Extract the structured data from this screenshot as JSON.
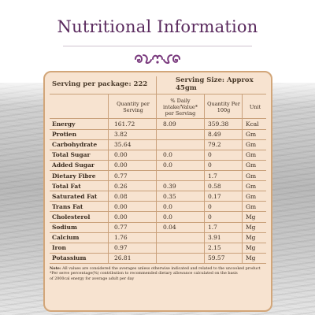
{
  "title": "Nutritional Information",
  "header": {
    "serving_per_package": "Serving per package: 222",
    "serving_size": "Serving Size: Approx 45gm"
  },
  "columns": {
    "qty_per_serving": "Quantity per Serving",
    "daily_intake": "% Daily intake/Value* per Serving",
    "qty_per_100g": "Quantity Per 100g",
    "unit": "Unit"
  },
  "rows": [
    {
      "name": "Energy",
      "qty": "161.72",
      "daily": "8.09",
      "per100": "359.38",
      "unit": "Kcal"
    },
    {
      "name": "Protien",
      "qty": "3.82",
      "daily": "",
      "per100": "8.49",
      "unit": "Gm"
    },
    {
      "name": "Carbohydrate",
      "qty": "35.64",
      "daily": "",
      "per100": "79.2",
      "unit": "Gm"
    },
    {
      "name": "Total Sugar",
      "qty": "0.00",
      "daily": "0.0",
      "per100": "0",
      "unit": "Gm"
    },
    {
      "name": "Added Sugar",
      "qty": "0.00",
      "daily": "0.0",
      "per100": "0",
      "unit": "Gm"
    },
    {
      "name": "Dietary Fibre",
      "qty": "0.77",
      "daily": "",
      "per100": "1.7",
      "unit": "Gm"
    },
    {
      "name": "Total Fat",
      "qty": "0.26",
      "daily": "0.39",
      "per100": "0.58",
      "unit": "Gm"
    },
    {
      "name": "Saturated Fat",
      "qty": "0.08",
      "daily": "0.35",
      "per100": "0.17",
      "unit": "Gm"
    },
    {
      "name": "Trans Fat",
      "qty": "0.00",
      "daily": "0.0",
      "per100": "0",
      "unit": "Gm"
    },
    {
      "name": "Cholesterol",
      "qty": "0.00",
      "daily": "0.0",
      "per100": "0",
      "unit": "Mg"
    },
    {
      "name": "Sodium",
      "qty": "0.77",
      "daily": "0.04",
      "per100": "1.7",
      "unit": "Mg"
    },
    {
      "name": "Calcium",
      "qty": "1.76",
      "daily": "",
      "per100": "3.91",
      "unit": "Mg"
    },
    {
      "name": "Iron",
      "qty": "0.97",
      "daily": "",
      "per100": "2.15",
      "unit": "Mg"
    },
    {
      "name": "Potassium",
      "qty": "26.81",
      "daily": "",
      "per100": "59.57",
      "unit": "Mg"
    }
  ],
  "note": {
    "label": "Note:",
    "line1": "All values are considered the averages unless otherwise indicated and related to the uncooked product",
    "line2": "*Per serve percentage(%) contribution to recommended dietary allowance calculated on the basis",
    "line3": "of 2000cal energy for average adult per day"
  },
  "colors": {
    "title": "#5a2a5e",
    "panel_bg": "#f7e3d0",
    "panel_border": "#d2a679",
    "ornament": "#7a3a7e"
  },
  "icons": [
    "swirl-ornament-icon"
  ]
}
